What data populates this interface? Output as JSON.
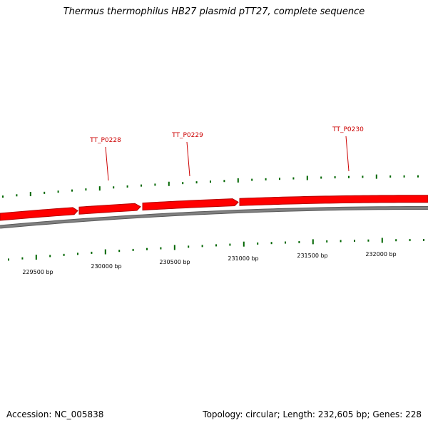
{
  "title": "Thermus thermophilus HB27 plasmid pTT27, complete sequence",
  "colors": {
    "gene": "#ff0000",
    "gene_edge": "#b30000",
    "backbone": "#808080",
    "tick": "#006600",
    "label": "#cc0000"
  },
  "genes": [
    {
      "label": "TT_P0228"
    },
    {
      "label": "TT_P0229"
    },
    {
      "label": "TT_P0230"
    }
  ],
  "scale_labels": [
    "229500 bp",
    "230000 bp",
    "230500 bp",
    "231000 bp",
    "231500 bp",
    "232000 bp"
  ],
  "footer": {
    "accession": "Accession: NC_005838",
    "summary": "Topology: circular; Length: 232,605 bp; Genes: 228"
  }
}
